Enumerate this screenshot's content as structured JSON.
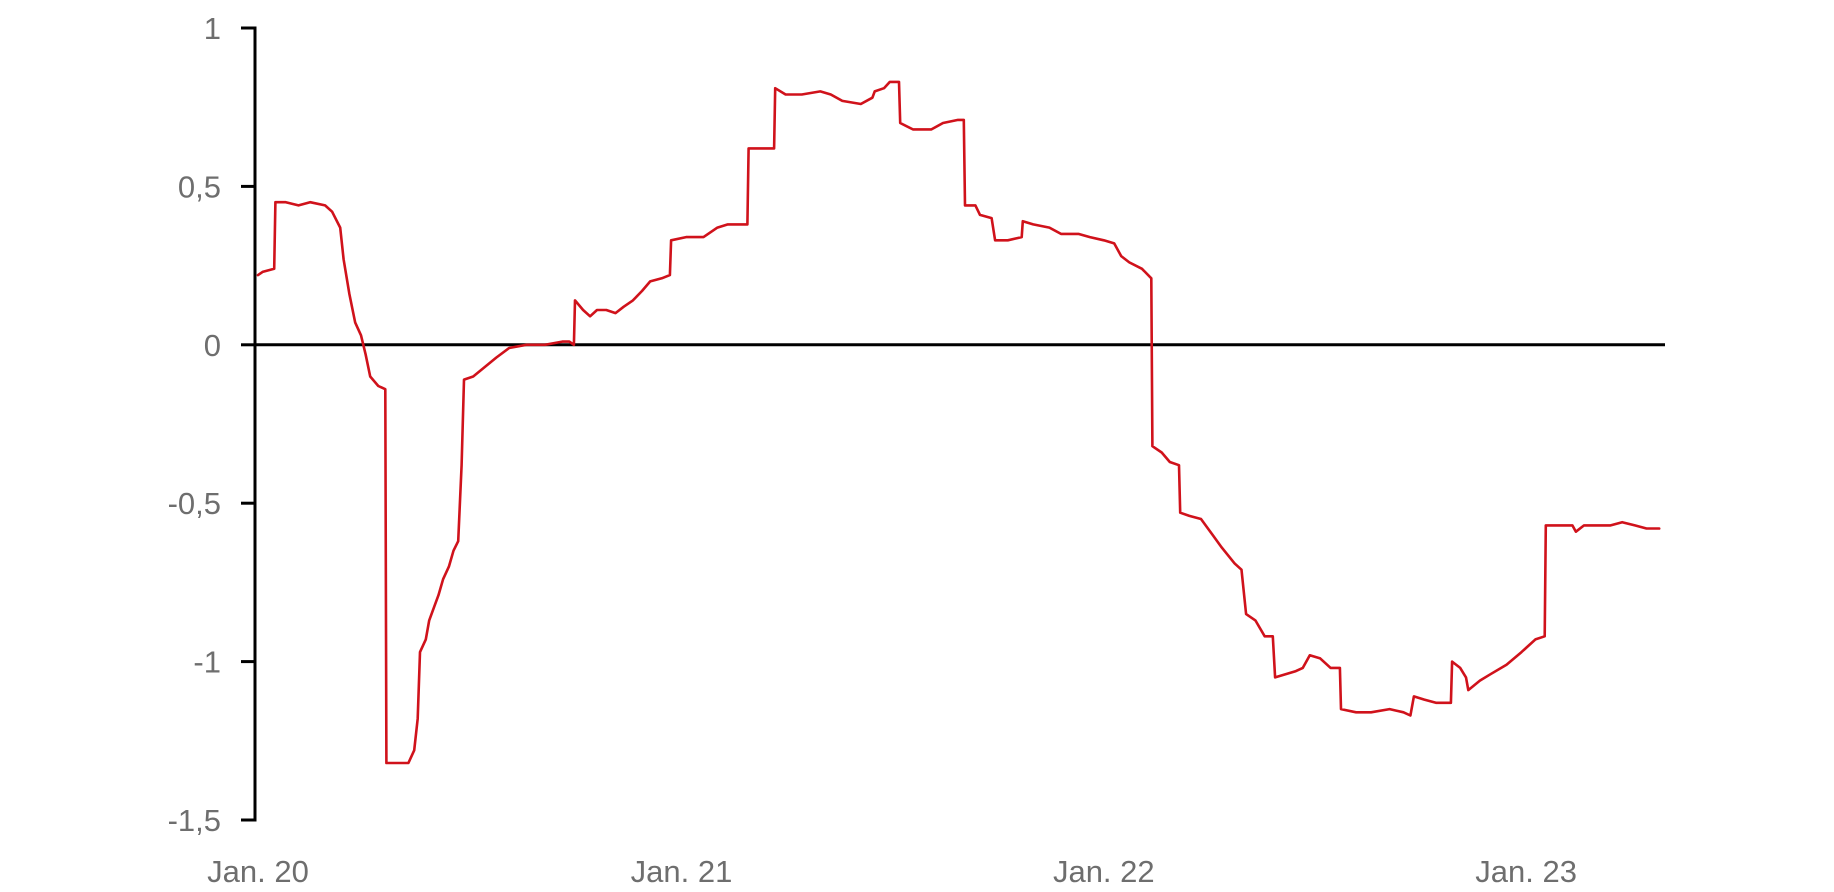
{
  "chart_data": {
    "type": "line",
    "title": "",
    "xlabel": "",
    "ylabel": "",
    "xlim": [
      "2020-01-01",
      "2023-05-01"
    ],
    "ylim": [
      -1.5,
      1
    ],
    "y_ticks": [
      1,
      0.5,
      0,
      -0.5,
      -1,
      -1.5
    ],
    "y_tick_labels": [
      "1",
      "0,5",
      "0",
      "-0,5",
      "-1",
      "-1,5"
    ],
    "x_ticks": [
      "2020-01-01",
      "2021-01-01",
      "2022-01-01",
      "2023-01-01"
    ],
    "x_tick_labels": [
      "Jan. 20",
      "Jan. 21",
      "Jan. 22",
      "Jan. 23"
    ],
    "grid": false,
    "zero_line": true,
    "legend": "none",
    "colors": {
      "series": "#d0121b",
      "axis": "#000000",
      "tick_text": "#6e6e6e"
    },
    "series": [
      {
        "color": "#d0121b",
        "points": [
          [
            "2020-01-01",
            0.22
          ],
          [
            "2020-01-05",
            0.23
          ],
          [
            "2020-01-15",
            0.24
          ],
          [
            "2020-01-16",
            0.45
          ],
          [
            "2020-01-25",
            0.45
          ],
          [
            "2020-02-05",
            0.44
          ],
          [
            "2020-02-15",
            0.45
          ],
          [
            "2020-02-28",
            0.44
          ],
          [
            "2020-03-05",
            0.42
          ],
          [
            "2020-03-12",
            0.37
          ],
          [
            "2020-03-15",
            0.27
          ],
          [
            "2020-03-20",
            0.16
          ],
          [
            "2020-03-25",
            0.07
          ],
          [
            "2020-03-30",
            0.03
          ],
          [
            "2020-04-03",
            -0.03
          ],
          [
            "2020-04-07",
            -0.1
          ],
          [
            "2020-04-14",
            -0.13
          ],
          [
            "2020-04-20",
            -0.14
          ],
          [
            "2020-04-21",
            -1.32
          ],
          [
            "2020-05-01",
            -1.32
          ],
          [
            "2020-05-10",
            -1.32
          ],
          [
            "2020-05-15",
            -1.28
          ],
          [
            "2020-05-18",
            -1.18
          ],
          [
            "2020-05-20",
            -0.97
          ],
          [
            "2020-05-25",
            -0.93
          ],
          [
            "2020-05-28",
            -0.87
          ],
          [
            "2020-06-02",
            -0.82
          ],
          [
            "2020-06-05",
            -0.79
          ],
          [
            "2020-06-09",
            -0.74
          ],
          [
            "2020-06-14",
            -0.7
          ],
          [
            "2020-06-18",
            -0.65
          ],
          [
            "2020-06-22",
            -0.62
          ],
          [
            "2020-06-25",
            -0.38
          ],
          [
            "2020-06-27",
            -0.11
          ],
          [
            "2020-07-05",
            -0.1
          ],
          [
            "2020-07-15",
            -0.07
          ],
          [
            "2020-07-25",
            -0.04
          ],
          [
            "2020-08-05",
            -0.01
          ],
          [
            "2020-08-20",
            0.0
          ],
          [
            "2020-09-05",
            0.0
          ],
          [
            "2020-09-20",
            0.01
          ],
          [
            "2020-09-26",
            0.01
          ],
          [
            "2020-09-30",
            0.0
          ],
          [
            "2020-10-01",
            0.14
          ],
          [
            "2020-10-08",
            0.11
          ],
          [
            "2020-10-14",
            0.09
          ],
          [
            "2020-10-20",
            0.11
          ],
          [
            "2020-10-28",
            0.11
          ],
          [
            "2020-11-05",
            0.1
          ],
          [
            "2020-11-12",
            0.12
          ],
          [
            "2020-11-20",
            0.14
          ],
          [
            "2020-11-28",
            0.17
          ],
          [
            "2020-12-05",
            0.2
          ],
          [
            "2020-12-15",
            0.21
          ],
          [
            "2020-12-22",
            0.22
          ],
          [
            "2020-12-23",
            0.33
          ],
          [
            "2021-01-05",
            0.34
          ],
          [
            "2021-01-20",
            0.34
          ],
          [
            "2021-02-01",
            0.37
          ],
          [
            "2021-02-10",
            0.38
          ],
          [
            "2021-02-20",
            0.38
          ],
          [
            "2021-02-27",
            0.38
          ],
          [
            "2021-02-28",
            0.62
          ],
          [
            "2021-03-10",
            0.62
          ],
          [
            "2021-03-22",
            0.62
          ],
          [
            "2021-03-23",
            0.81
          ],
          [
            "2021-04-01",
            0.79
          ],
          [
            "2021-04-15",
            0.79
          ],
          [
            "2021-05-01",
            0.8
          ],
          [
            "2021-05-10",
            0.79
          ],
          [
            "2021-05-20",
            0.77
          ],
          [
            "2021-06-05",
            0.76
          ],
          [
            "2021-06-15",
            0.78
          ],
          [
            "2021-06-17",
            0.8
          ],
          [
            "2021-06-25",
            0.81
          ],
          [
            "2021-06-30",
            0.83
          ],
          [
            "2021-07-08",
            0.83
          ],
          [
            "2021-07-09",
            0.7
          ],
          [
            "2021-07-20",
            0.68
          ],
          [
            "2021-08-05",
            0.68
          ],
          [
            "2021-08-15",
            0.7
          ],
          [
            "2021-08-28",
            0.71
          ],
          [
            "2021-09-02",
            0.71
          ],
          [
            "2021-09-03",
            0.44
          ],
          [
            "2021-09-12",
            0.44
          ],
          [
            "2021-09-16",
            0.41
          ],
          [
            "2021-09-26",
            0.4
          ],
          [
            "2021-09-29",
            0.33
          ],
          [
            "2021-10-10",
            0.33
          ],
          [
            "2021-10-22",
            0.34
          ],
          [
            "2021-10-23",
            0.39
          ],
          [
            "2021-11-01",
            0.38
          ],
          [
            "2021-11-15",
            0.37
          ],
          [
            "2021-11-25",
            0.35
          ],
          [
            "2021-12-10",
            0.35
          ],
          [
            "2021-12-20",
            0.34
          ],
          [
            "2022-01-01",
            0.33
          ],
          [
            "2022-01-10",
            0.32
          ],
          [
            "2022-01-16",
            0.28
          ],
          [
            "2022-01-23",
            0.26
          ],
          [
            "2022-02-03",
            0.24
          ],
          [
            "2022-02-11",
            0.21
          ],
          [
            "2022-02-12",
            -0.32
          ],
          [
            "2022-02-20",
            -0.34
          ],
          [
            "2022-02-27",
            -0.37
          ],
          [
            "2022-03-07",
            -0.38
          ],
          [
            "2022-03-08",
            -0.53
          ],
          [
            "2022-03-16",
            -0.54
          ],
          [
            "2022-03-26",
            -0.55
          ],
          [
            "2022-04-05",
            -0.6
          ],
          [
            "2022-04-13",
            -0.64
          ],
          [
            "2022-04-24",
            -0.69
          ],
          [
            "2022-04-30",
            -0.71
          ],
          [
            "2022-05-04",
            -0.85
          ],
          [
            "2022-05-12",
            -0.87
          ],
          [
            "2022-05-20",
            -0.92
          ],
          [
            "2022-05-27",
            -0.92
          ],
          [
            "2022-05-29",
            -1.05
          ],
          [
            "2022-06-07",
            -1.04
          ],
          [
            "2022-06-16",
            -1.03
          ],
          [
            "2022-06-22",
            -1.02
          ],
          [
            "2022-06-28",
            -0.98
          ],
          [
            "2022-07-07",
            -0.99
          ],
          [
            "2022-07-16",
            -1.02
          ],
          [
            "2022-07-24",
            -1.02
          ],
          [
            "2022-07-25",
            -1.15
          ],
          [
            "2022-08-07",
            -1.16
          ],
          [
            "2022-08-20",
            -1.16
          ],
          [
            "2022-09-05",
            -1.15
          ],
          [
            "2022-09-17",
            -1.16
          ],
          [
            "2022-09-23",
            -1.17
          ],
          [
            "2022-09-26",
            -1.11
          ],
          [
            "2022-10-05",
            -1.12
          ],
          [
            "2022-10-15",
            -1.13
          ],
          [
            "2022-10-28",
            -1.13
          ],
          [
            "2022-10-29",
            -1.0
          ],
          [
            "2022-11-05",
            -1.02
          ],
          [
            "2022-11-10",
            -1.05
          ],
          [
            "2022-11-12",
            -1.09
          ],
          [
            "2022-11-22",
            -1.06
          ],
          [
            "2022-12-01",
            -1.04
          ],
          [
            "2022-12-15",
            -1.01
          ],
          [
            "2022-12-28",
            -0.97
          ],
          [
            "2023-01-09",
            -0.93
          ],
          [
            "2023-01-17",
            -0.92
          ],
          [
            "2023-01-18",
            -0.57
          ],
          [
            "2023-02-01",
            -0.57
          ],
          [
            "2023-02-10",
            -0.57
          ],
          [
            "2023-02-13",
            -0.59
          ],
          [
            "2023-02-20",
            -0.57
          ],
          [
            "2023-03-05",
            -0.57
          ],
          [
            "2023-03-15",
            -0.57
          ],
          [
            "2023-03-25",
            -0.56
          ],
          [
            "2023-04-05",
            -0.57
          ],
          [
            "2023-04-15",
            -0.58
          ],
          [
            "2023-04-26",
            -0.58
          ]
        ]
      }
    ]
  }
}
